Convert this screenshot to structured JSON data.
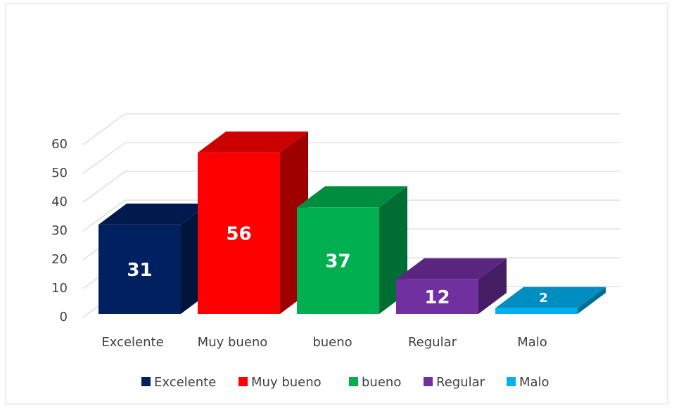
{
  "chart_data": {
    "type": "bar3d",
    "categories": [
      "Excelente",
      "Muy bueno",
      "bueno",
      "Regular",
      "Malo"
    ],
    "values": [
      31,
      56,
      37,
      12,
      2
    ],
    "colors": [
      "#002060",
      "#ff0000",
      "#00b050",
      "#7030a0",
      "#00b0f0"
    ],
    "ylim": [
      0,
      60
    ],
    "yticks": [
      0,
      10,
      20,
      30,
      40,
      50,
      60
    ],
    "grid": true,
    "legend": "bottom"
  }
}
